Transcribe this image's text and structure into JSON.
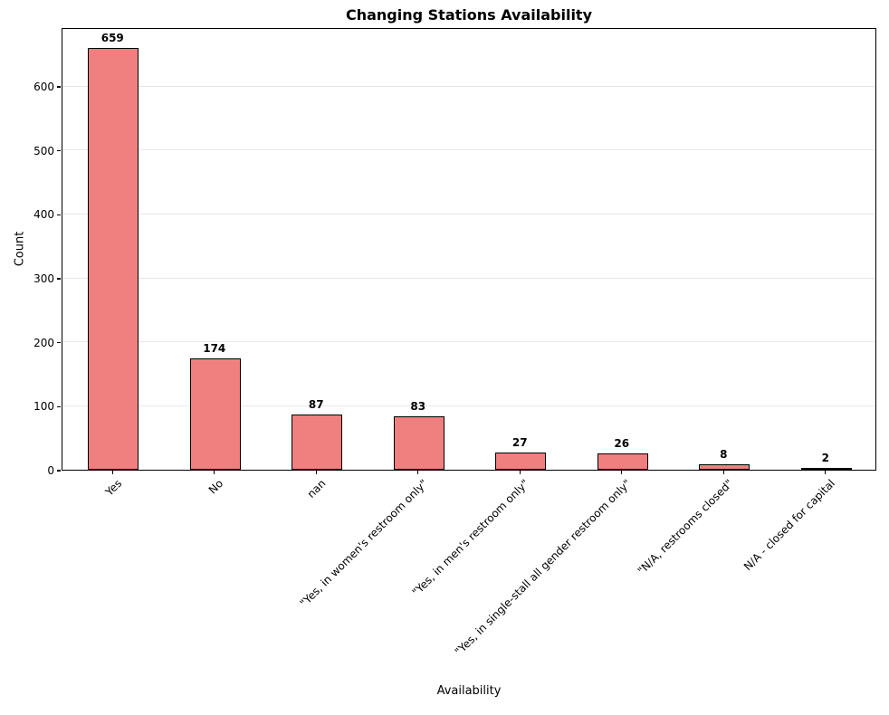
{
  "chart_data": {
    "type": "bar",
    "title": "Changing Stations Availability",
    "xlabel": "Availability",
    "ylabel": "Count",
    "categories": [
      "Yes",
      "No",
      "nan",
      "\"Yes, in women's restroom only\"",
      "\"Yes, in men's restroom only\"",
      "\"Yes, in single-stall all gender restroom only\"",
      "\"N/A, restrooms closed\"",
      "N/A - closed for capital"
    ],
    "values": [
      659,
      174,
      87,
      83,
      27,
      26,
      8,
      2
    ],
    "value_labels": [
      "659",
      "174",
      "87",
      "83",
      "27",
      "26",
      "8",
      "2"
    ],
    "yticks": [
      0,
      100,
      200,
      300,
      400,
      500,
      600
    ],
    "ylim": [
      0,
      692
    ],
    "bar_color": "#F08080",
    "bar_edge_color": "#000000",
    "grid": true,
    "grid_axis": "y",
    "legend": "none",
    "xtick_rotation": 45
  }
}
